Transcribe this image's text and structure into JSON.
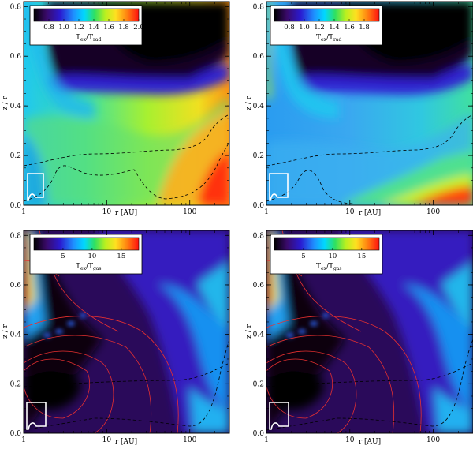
{
  "chart_data": [
    {
      "type": "heatmap",
      "panel": "top-left",
      "xlabel": "r [AU]",
      "ylabel": "z / r",
      "xscale": "log",
      "xlim": [
        1,
        300
      ],
      "ylim": [
        0,
        0.82
      ],
      "x_ticks": [
        "1",
        "10",
        "100"
      ],
      "y_ticks": [
        "0.0",
        "0.2",
        "0.4",
        "0.6",
        "0.8"
      ],
      "colorbar": {
        "title_main": "T",
        "title_sub1": "ex",
        "title_mid": "/T",
        "title_sub2": "rad",
        "ticks": [
          "0.8",
          "1.0",
          "1.2",
          "1.4",
          "1.6",
          "1.8",
          "2.0"
        ],
        "range": [
          0.6,
          2.0
        ]
      },
      "grid": false
    },
    {
      "type": "heatmap",
      "panel": "top-right",
      "xlabel": "r [AU]",
      "ylabel": "z / r",
      "xscale": "log",
      "xlim": [
        1,
        300
      ],
      "ylim": [
        0,
        0.82
      ],
      "x_ticks": [
        "1",
        "10",
        "100"
      ],
      "y_ticks": [
        "0.0",
        "0.2",
        "0.4",
        "0.6",
        "0.8"
      ],
      "colorbar": {
        "title_main": "T",
        "title_sub1": "ex",
        "title_mid": "/T",
        "title_sub2": "rad",
        "ticks": [
          "0.8",
          "1.0",
          "1.2",
          "1.4",
          "1.6",
          "1.8"
        ],
        "range": [
          0.6,
          2.0
        ]
      },
      "grid": false
    },
    {
      "type": "heatmap",
      "panel": "bottom-left",
      "xlabel": "r [AU]",
      "ylabel": "z / r",
      "xscale": "log",
      "xlim": [
        1,
        300
      ],
      "ylim": [
        0,
        0.82
      ],
      "x_ticks": [
        "1",
        "10",
        "100"
      ],
      "y_ticks": [
        "0.0",
        "0.2",
        "0.4",
        "0.6",
        "0.8"
      ],
      "colorbar": {
        "title_main": "T",
        "title_sub1": "ex",
        "title_mid": "/T",
        "title_sub2": "gas",
        "ticks": [
          "5",
          "10",
          "15"
        ],
        "range": [
          0,
          18
        ]
      },
      "grid": false
    },
    {
      "type": "heatmap",
      "panel": "bottom-right",
      "xlabel": "r [AU]",
      "ylabel": "z / r",
      "xscale": "log",
      "xlim": [
        1,
        300
      ],
      "ylim": [
        0,
        0.82
      ],
      "x_ticks": [
        "1",
        "10",
        "100"
      ],
      "y_ticks": [
        "0.0",
        "0.2",
        "0.4",
        "0.6",
        "0.8"
      ],
      "colorbar": {
        "title_main": "T",
        "title_sub1": "ex",
        "title_mid": "/T",
        "title_sub2": "gas",
        "ticks": [
          "5",
          "10",
          "15"
        ],
        "range": [
          0,
          18
        ]
      },
      "grid": false
    }
  ],
  "colors": {
    "colormap": [
      "#000000",
      "#3a0a6a",
      "#2a1ad0",
      "#1e90ff",
      "#00d8ff",
      "#2fe060",
      "#b8f020",
      "#ffe020",
      "#ff8010",
      "#ff1010"
    ],
    "contour_dashed": "#000000",
    "contour_red": "#e83030",
    "region_outline": "#ffffff"
  }
}
